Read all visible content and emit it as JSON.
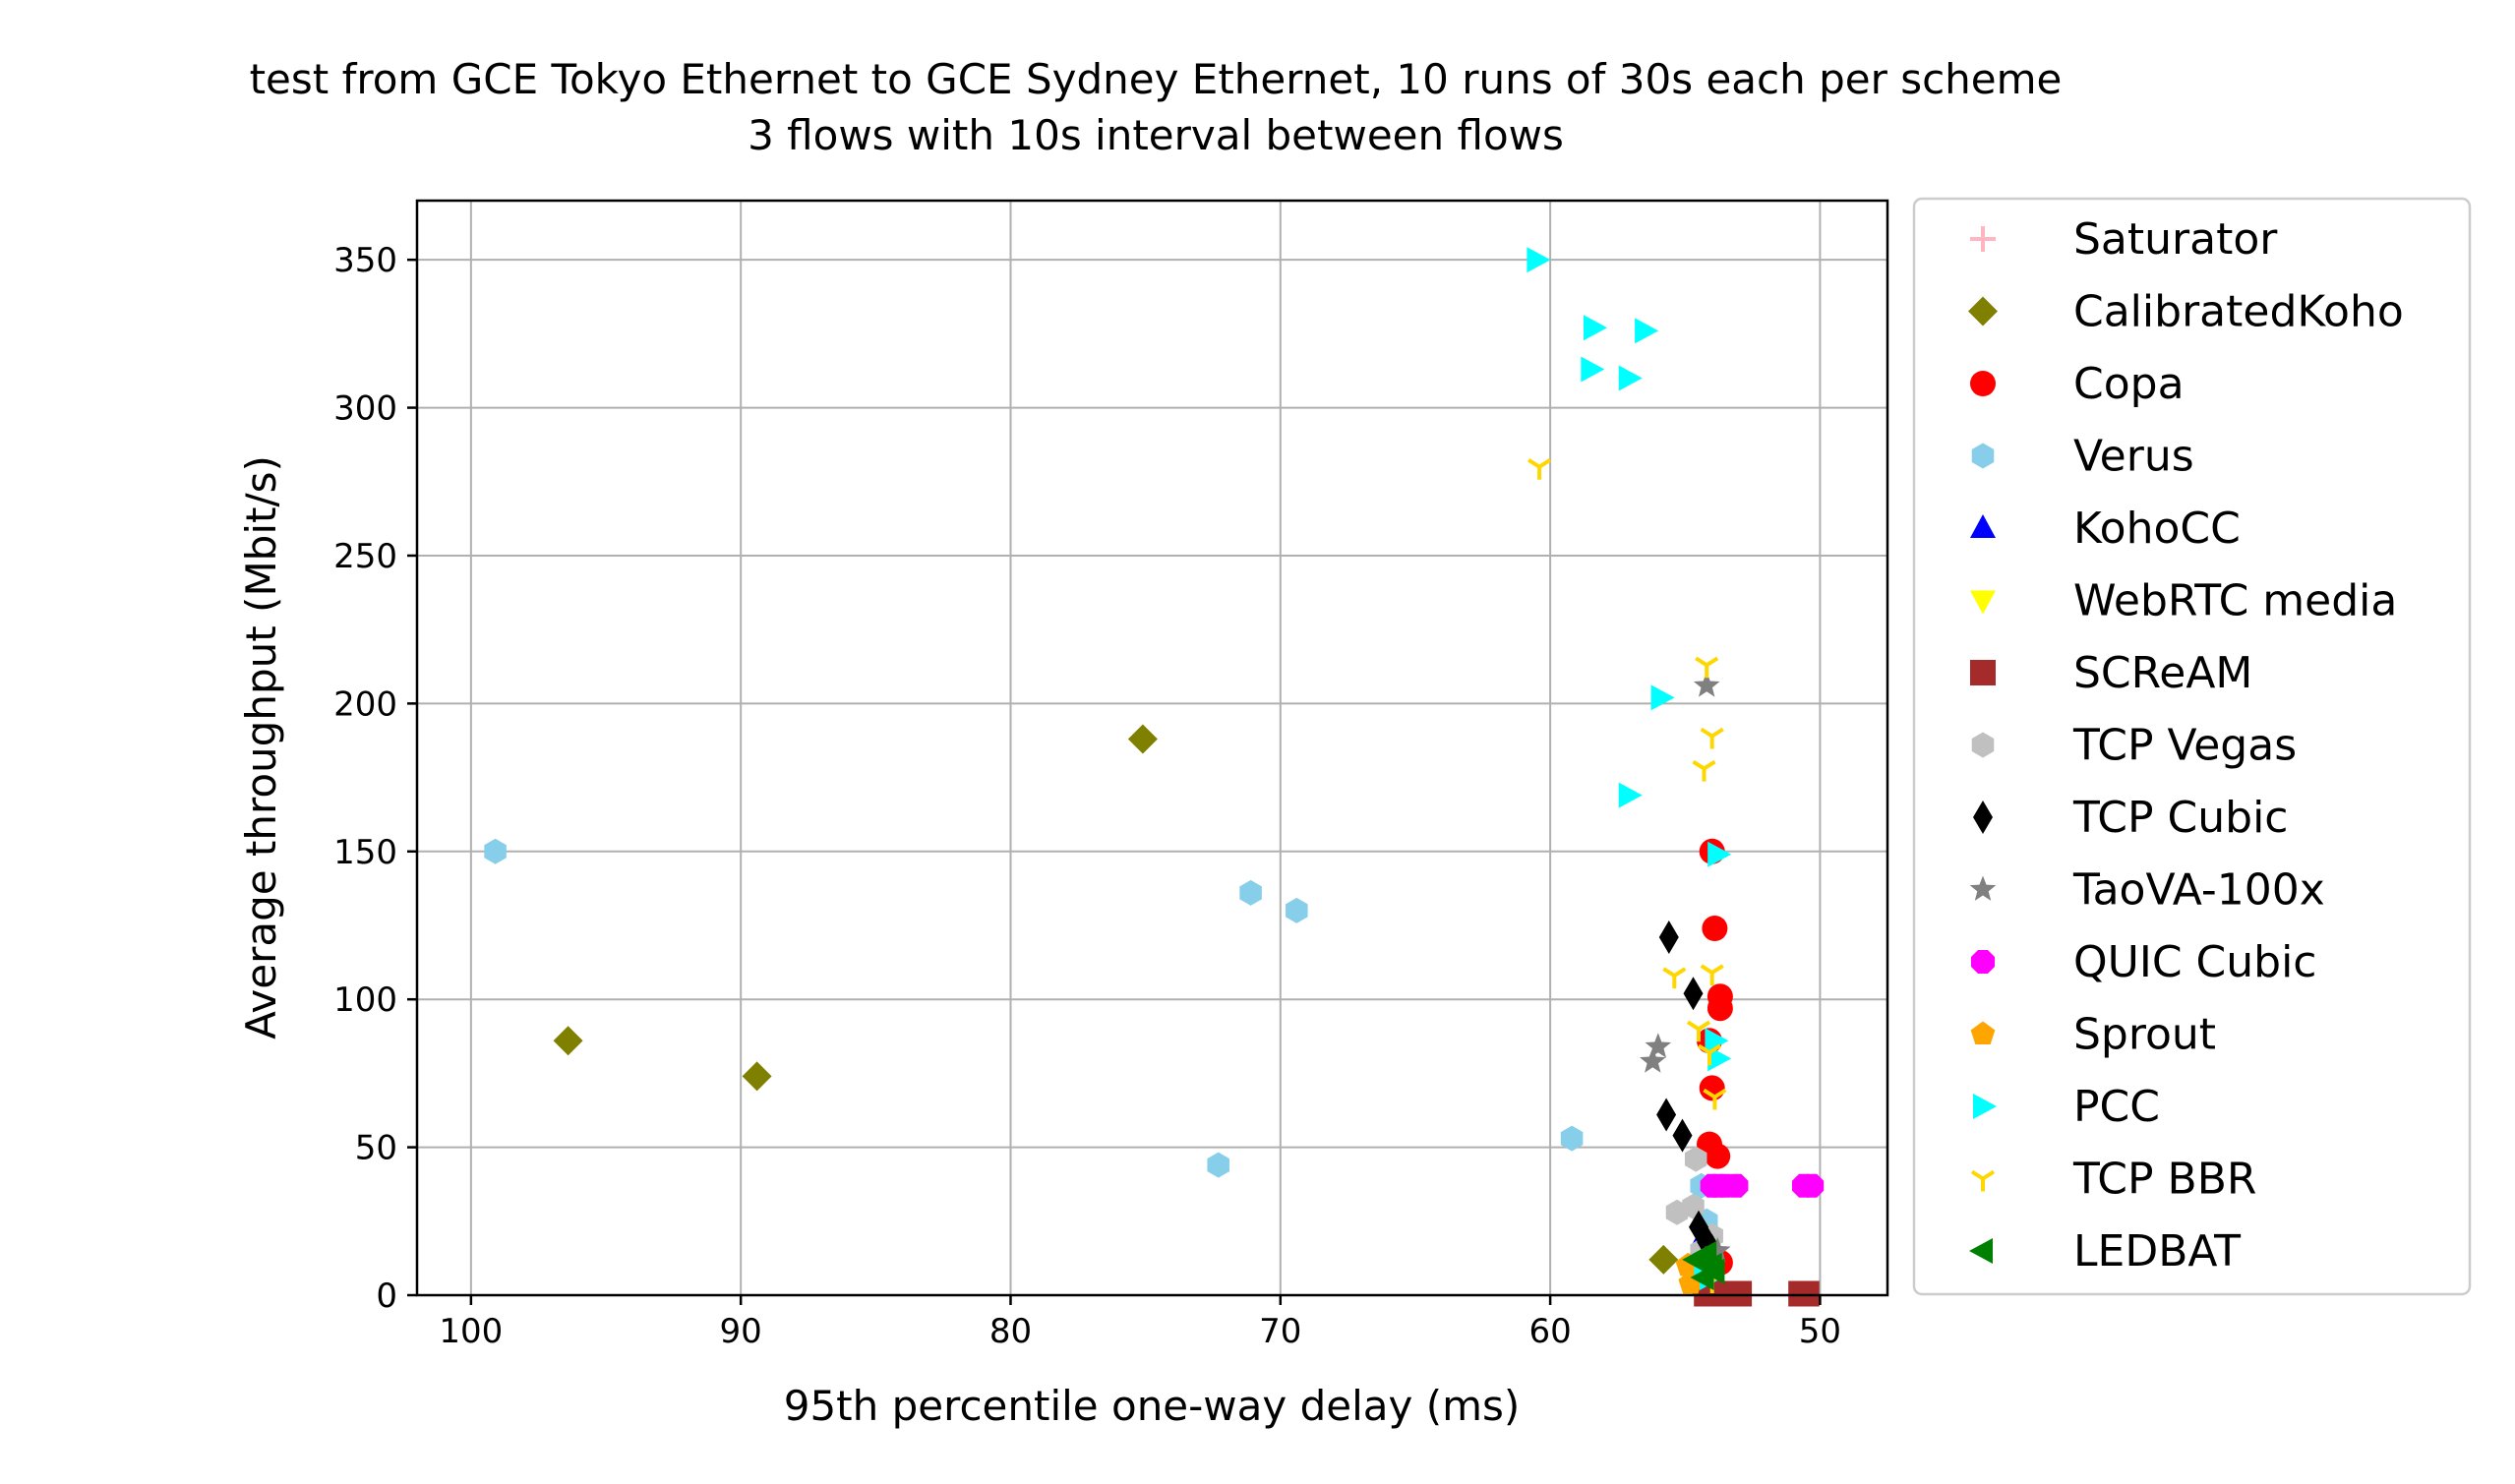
{
  "chart_data": {
    "type": "scatter",
    "title": "test from GCE Tokyo Ethernet to GCE Sydney Ethernet, 10 runs of 30s each per scheme",
    "subtitle": "3 flows with 10s interval between flows",
    "xlabel": "95th percentile one-way delay (ms)",
    "ylabel": "Average throughput (Mbit/s)",
    "xlim": [
      102,
      47.5
    ],
    "ylim": [
      0,
      370
    ],
    "x_inverted": true,
    "x_ticks": [
      100,
      90,
      80,
      70,
      60,
      50
    ],
    "y_ticks": [
      0,
      50,
      100,
      150,
      200,
      250,
      300,
      350
    ],
    "grid": true,
    "legend_position": "outside-right",
    "series": [
      {
        "name": "Saturator",
        "marker": "plus",
        "color": "#ffb6c1",
        "points": []
      },
      {
        "name": "CalibratedKoho",
        "marker": "diamond",
        "color": "#808000",
        "points": [
          [
            96.4,
            86
          ],
          [
            89.4,
            74
          ],
          [
            75.1,
            188
          ],
          [
            55.8,
            12
          ],
          [
            54.5,
            12
          ],
          [
            54.0,
            8
          ]
        ]
      },
      {
        "name": "Copa",
        "marker": "circle",
        "color": "#ff0000",
        "points": [
          [
            54.0,
            150
          ],
          [
            53.9,
            124
          ],
          [
            53.7,
            101
          ],
          [
            53.7,
            97
          ],
          [
            54.1,
            86
          ],
          [
            54.0,
            70
          ],
          [
            54.1,
            51
          ],
          [
            53.8,
            47
          ],
          [
            53.7,
            11
          ],
          [
            54.0,
            8
          ]
        ]
      },
      {
        "name": "Verus",
        "marker": "hexagon",
        "color": "#87ceeb",
        "points": [
          [
            99.1,
            150
          ],
          [
            71.1,
            136
          ],
          [
            69.4,
            130
          ],
          [
            72.3,
            44
          ],
          [
            59.2,
            53
          ],
          [
            54.4,
            37
          ],
          [
            54.2,
            25
          ]
        ]
      },
      {
        "name": "KohoCC",
        "marker": "triangle-up",
        "color": "#0000ff",
        "points": [
          [
            54.3,
            20
          ],
          [
            54.5,
            5
          ],
          [
            54.3,
            3
          ]
        ]
      },
      {
        "name": "WebRTC media",
        "marker": "triangle-down",
        "color": "#ffff00",
        "points": [
          [
            54.8,
            6
          ],
          [
            54.5,
            4
          ]
        ]
      },
      {
        "name": "SCReAM",
        "marker": "square",
        "color": "#a52a2a",
        "points": [
          [
            50.7,
            0.5
          ],
          [
            50.5,
            0.5
          ],
          [
            54.0,
            0.5
          ],
          [
            53.5,
            0.5
          ],
          [
            53.0,
            0.5
          ],
          [
            54.2,
            0.5
          ]
        ]
      },
      {
        "name": "TCP Vegas",
        "marker": "hexagon",
        "color": "#c0c0c0",
        "points": [
          [
            54.6,
            46
          ],
          [
            55.3,
            28
          ],
          [
            54.7,
            30
          ],
          [
            54.0,
            20
          ],
          [
            54.4,
            15
          ],
          [
            54.8,
            10
          ]
        ]
      },
      {
        "name": "TCP Cubic",
        "marker": "thin-diamond",
        "color": "#000000",
        "points": [
          [
            55.6,
            121
          ],
          [
            54.7,
            102
          ],
          [
            55.7,
            61
          ],
          [
            55.1,
            54
          ],
          [
            54.5,
            23
          ],
          [
            54.2,
            18
          ],
          [
            54.0,
            15
          ]
        ]
      },
      {
        "name": "TaoVA-100x",
        "marker": "star",
        "color": "#808080",
        "points": [
          [
            54.2,
            206
          ],
          [
            56.0,
            84
          ],
          [
            56.2,
            79
          ],
          [
            53.8,
            15
          ],
          [
            54.5,
            10
          ]
        ]
      },
      {
        "name": "QUIC Cubic",
        "marker": "octagon",
        "color": "#ff00ff",
        "points": [
          [
            54.0,
            37
          ],
          [
            53.8,
            37
          ],
          [
            53.5,
            37
          ],
          [
            53.1,
            37
          ],
          [
            50.6,
            37
          ],
          [
            50.3,
            37
          ]
        ]
      },
      {
        "name": "Sprout",
        "marker": "pentagon",
        "color": "#ffa500",
        "points": [
          [
            54.9,
            10
          ],
          [
            54.6,
            6
          ],
          [
            54.8,
            4
          ]
        ]
      },
      {
        "name": "PCC",
        "marker": "triangle-right",
        "color": "#00ffff",
        "points": [
          [
            60.5,
            350
          ],
          [
            58.4,
            327
          ],
          [
            56.5,
            326
          ],
          [
            58.5,
            313
          ],
          [
            57.1,
            310
          ],
          [
            55.9,
            202
          ],
          [
            57.1,
            169
          ],
          [
            53.8,
            149
          ],
          [
            53.9,
            86
          ],
          [
            53.8,
            80
          ],
          [
            54.3,
            10
          ],
          [
            54.1,
            6
          ]
        ]
      },
      {
        "name": "TCP BBR",
        "marker": "tri-down",
        "color": "#ffd700",
        "points": [
          [
            60.4,
            280
          ],
          [
            54.2,
            213
          ],
          [
            54.0,
            189
          ],
          [
            54.3,
            178
          ],
          [
            55.4,
            108
          ],
          [
            54.0,
            109
          ],
          [
            54.5,
            90
          ],
          [
            54.1,
            82
          ],
          [
            53.9,
            67
          ],
          [
            54.0,
            5
          ]
        ]
      },
      {
        "name": "LEDBAT",
        "marker": "triangle-left",
        "color": "#008000",
        "points": [
          [
            54.6,
            12
          ],
          [
            54.2,
            14
          ],
          [
            54.0,
            10
          ],
          [
            54.3,
            6
          ],
          [
            53.9,
            8
          ],
          [
            54.4,
            11
          ]
        ]
      }
    ]
  }
}
